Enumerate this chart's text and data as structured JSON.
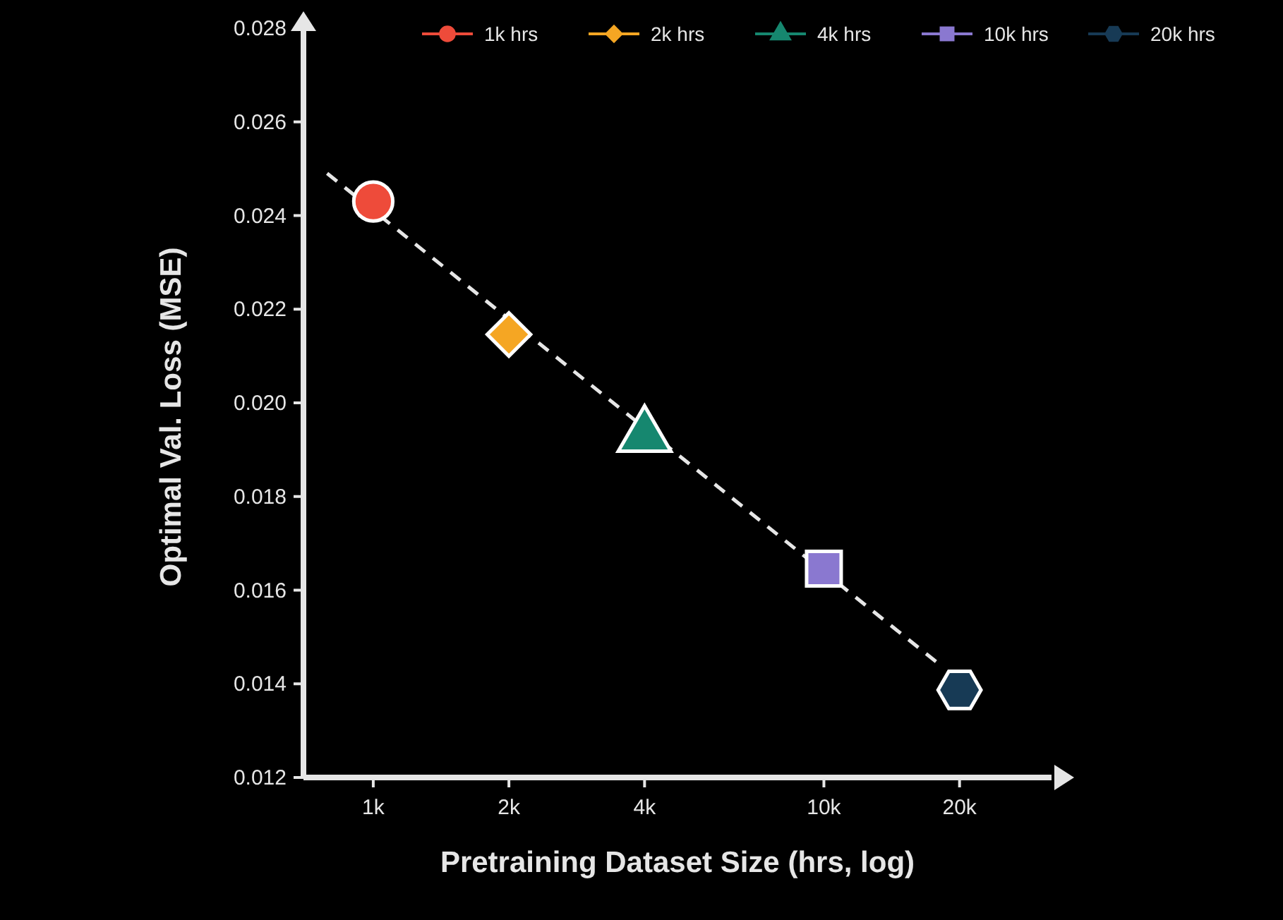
{
  "chart_data": {
    "type": "scatter",
    "xlabel": "Pretraining Dataset Size (hrs, log)",
    "ylabel": "Optimal Val. Loss (MSE)",
    "log": "x",
    "xlim": [
      700,
      32000
    ],
    "xticks": [
      {
        "value": 1000,
        "label": "1k"
      },
      {
        "value": 2000,
        "label": "2k"
      },
      {
        "value": 4000,
        "label": "4k"
      },
      {
        "value": 10000,
        "label": "10k"
      },
      {
        "value": 20000,
        "label": "20k"
      }
    ],
    "ylim": [
      0.012,
      0.028
    ],
    "yticks": [
      0.012,
      0.014,
      0.016,
      0.018,
      {
        "value": 0.02,
        "label": "0.020"
      },
      0.022,
      0.024,
      0.026,
      0.028
    ],
    "grid": false,
    "legend": "top right",
    "series": [
      {
        "type": "line",
        "x": [
          790,
          18400
        ],
        "values": [
          0.0249,
          0.01435
        ],
        "color": "#e6e6e6",
        "line_style": "dashed",
        "marker": "none"
      },
      {
        "name": "1k hrs",
        "x": [
          1000
        ],
        "values": [
          0.0243
        ],
        "color": "#ee4b3a",
        "marker": "circle"
      },
      {
        "name": "2k hrs",
        "x": [
          2000
        ],
        "values": [
          0.02146
        ],
        "color": "#f5a623",
        "marker": "diamond"
      },
      {
        "name": "4k hrs",
        "x": [
          4000
        ],
        "values": [
          0.01929
        ],
        "color": "#16876f",
        "marker": "triangle"
      },
      {
        "name": "10k hrs",
        "x": [
          10000
        ],
        "values": [
          0.01646
        ],
        "color": "#8a78d0",
        "marker": "square"
      },
      {
        "name": "20k hrs",
        "x": [
          20000
        ],
        "values": [
          0.01387
        ],
        "color": "#173a55"
      }
    ]
  }
}
